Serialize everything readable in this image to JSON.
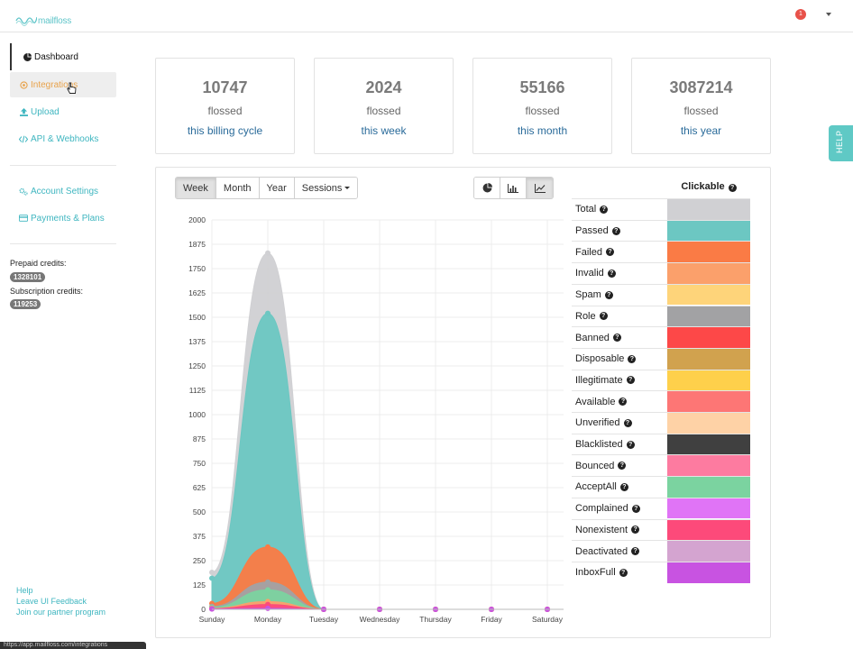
{
  "brand": {
    "name": "mailfloss"
  },
  "header": {
    "notification_count": "1"
  },
  "sidebar": {
    "items": [
      {
        "label": "Dashboard",
        "icon": "dashboard-icon"
      },
      {
        "label": "Integrations",
        "icon": "plug-icon"
      },
      {
        "label": "Upload",
        "icon": "upload-icon"
      },
      {
        "label": "API & Webhooks",
        "icon": "code-icon"
      },
      {
        "label": "Account Settings",
        "icon": "gears-icon"
      },
      {
        "label": "Payments & Plans",
        "icon": "credit-card-icon"
      }
    ],
    "prepaid_label": "Prepaid credits:",
    "prepaid_value": "1328101",
    "subscription_label": "Subscription credits:",
    "subscription_value": "119253",
    "footer": [
      "Help",
      "Leave UI Feedback",
      "Join our partner program"
    ],
    "status_url": "https://app.mailfloss.com/integrations"
  },
  "stats": [
    {
      "value": "10747",
      "word": "flossed",
      "period": "this billing cycle"
    },
    {
      "value": "2024",
      "word": "flossed",
      "period": "this week"
    },
    {
      "value": "55166",
      "word": "flossed",
      "period": "this month"
    },
    {
      "value": "3087214",
      "word": "flossed",
      "period": "this year"
    }
  ],
  "controls": {
    "ranges": [
      "Week",
      "Month",
      "Year"
    ],
    "active_range": "Week",
    "sessions": "Sessions",
    "chart_types": [
      "pie-chart-icon",
      "bar-chart-icon",
      "line-chart-icon"
    ],
    "active_chart_type": "line-chart-icon"
  },
  "legend": {
    "header": "Clickable",
    "items": [
      {
        "label": "Total",
        "color": "#d0d0d3"
      },
      {
        "label": "Passed",
        "color": "#6cc7c2"
      },
      {
        "label": "Failed",
        "color": "#fa7b45"
      },
      {
        "label": "Invalid",
        "color": "#fba06b"
      },
      {
        "label": "Spam",
        "color": "#fed47a"
      },
      {
        "label": "Role",
        "color": "#a2a2a4"
      },
      {
        "label": "Banned",
        "color": "#fd4848"
      },
      {
        "label": "Disposable",
        "color": "#d1a24e"
      },
      {
        "label": "Illegitimate",
        "color": "#fed04b"
      },
      {
        "label": "Available",
        "color": "#fd7675"
      },
      {
        "label": "Unverified",
        "color": "#fed2a6"
      },
      {
        "label": "Blacklisted",
        "color": "#404040"
      },
      {
        "label": "Bounced",
        "color": "#fd7ba0"
      },
      {
        "label": "AcceptAll",
        "color": "#7bd3a0"
      },
      {
        "label": "Complained",
        "color": "#e074f6"
      },
      {
        "label": "Nonexistent",
        "color": "#fd4a7a"
      },
      {
        "label": "Deactivated",
        "color": "#d4a4d0"
      },
      {
        "label": "InboxFull",
        "color": "#c853e1"
      }
    ]
  },
  "help_tab": "HELP",
  "chart_data": {
    "type": "area",
    "categories": [
      "Sunday",
      "Monday",
      "Tuesday",
      "Wednesday",
      "Thursday",
      "Friday",
      "Saturday"
    ],
    "y_ticks": [
      0,
      125,
      250,
      375,
      500,
      625,
      750,
      875,
      1000,
      1125,
      1250,
      1375,
      1500,
      1625,
      1750,
      1875,
      2000
    ],
    "ylim": [
      0,
      2000
    ],
    "grid": true,
    "series": [
      {
        "name": "Total",
        "color": "#d0d0d3",
        "values": [
          190,
          1830,
          0,
          0,
          0,
          0,
          0
        ]
      },
      {
        "name": "Passed",
        "color": "#6cc7c2",
        "values": [
          160,
          1520,
          0,
          0,
          0,
          0,
          0
        ]
      },
      {
        "name": "Failed",
        "color": "#fa7b45",
        "values": [
          30,
          320,
          0,
          0,
          0,
          0,
          0
        ]
      },
      {
        "name": "Role",
        "color": "#a2a2a4",
        "values": [
          15,
          140,
          0,
          0,
          0,
          0,
          0
        ]
      },
      {
        "name": "AcceptAll",
        "color": "#7bd3a0",
        "values": [
          10,
          100,
          0,
          0,
          0,
          0,
          0
        ]
      },
      {
        "name": "Invalid",
        "color": "#fba06b",
        "values": [
          5,
          40,
          0,
          0,
          0,
          0,
          0
        ]
      },
      {
        "name": "Nonexistent",
        "color": "#fd4a7a",
        "values": [
          3,
          25,
          0,
          0,
          0,
          0,
          0
        ]
      },
      {
        "name": "InboxFull",
        "color": "#c853e1",
        "values": [
          2,
          5,
          0,
          0,
          0,
          0,
          0
        ]
      }
    ]
  }
}
